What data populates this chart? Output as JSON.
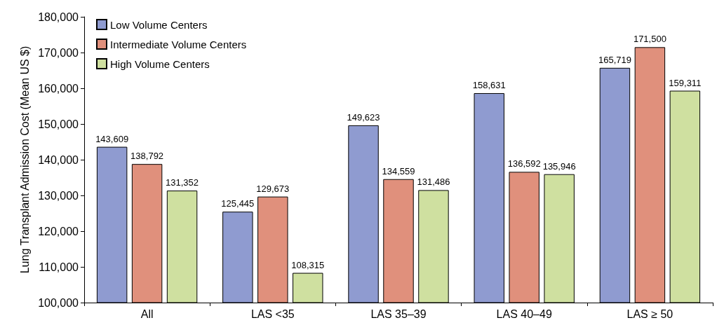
{
  "chart_data": {
    "type": "bar",
    "ylabel": "Lung Transplant Admission Cost (Mean US $)",
    "categories": [
      "All",
      "LAS <35",
      "LAS 35–39",
      "LAS 40–49",
      "LAS ≥ 50"
    ],
    "series": [
      {
        "name": "Low Volume Centers",
        "color": "#8f9bd0",
        "values": [
          143609,
          125445,
          149623,
          158631,
          165719
        ],
        "value_labels": [
          "143,609",
          "125,445",
          "149,623",
          "158,631",
          "165,719"
        ]
      },
      {
        "name": "Intermediate Volume Centers",
        "color": "#e0907c",
        "values": [
          138792,
          129673,
          134559,
          136592,
          171500
        ],
        "value_labels": [
          "138,792",
          "129,673",
          "134,559",
          "136,592",
          "171,500"
        ]
      },
      {
        "name": "High Volume Centers",
        "color": "#cfe0a0",
        "values": [
          131352,
          108315,
          131486,
          135946,
          159311
        ],
        "value_labels": [
          "131,352",
          "108,315",
          "131,486",
          "135,946",
          "159,311"
        ]
      }
    ],
    "ylim": [
      100000,
      180000
    ],
    "yticks": [
      {
        "value": 100000,
        "label": "100,000"
      },
      {
        "value": 110000,
        "label": "110,000"
      },
      {
        "value": 120000,
        "label": "120,000"
      },
      {
        "value": 130000,
        "label": "130,000"
      },
      {
        "value": 140000,
        "label": "140,000"
      },
      {
        "value": 150000,
        "label": "150,000"
      },
      {
        "value": 160000,
        "label": "160,000"
      },
      {
        "value": 170000,
        "label": "170,000"
      },
      {
        "value": 180000,
        "label": "180,000"
      }
    ],
    "legend": "top left",
    "grid": false
  }
}
